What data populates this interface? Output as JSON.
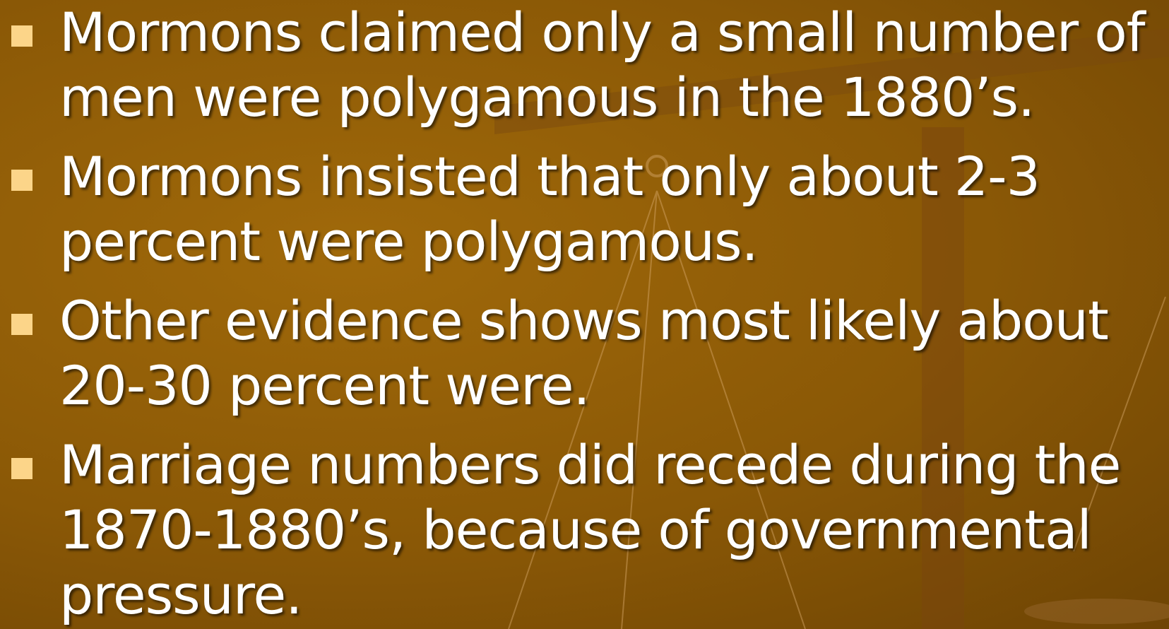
{
  "bullets": [
    "Mormons claimed only a small number of men were polygamous in the 1880’s.",
    "Mormons insisted that only about 2-3 percent were polygamous.",
    "Other evidence shows most likely about 20-30 percent were.",
    "Marriage numbers did recede during the 1870-1880’s, because of governmental pressure."
  ]
}
